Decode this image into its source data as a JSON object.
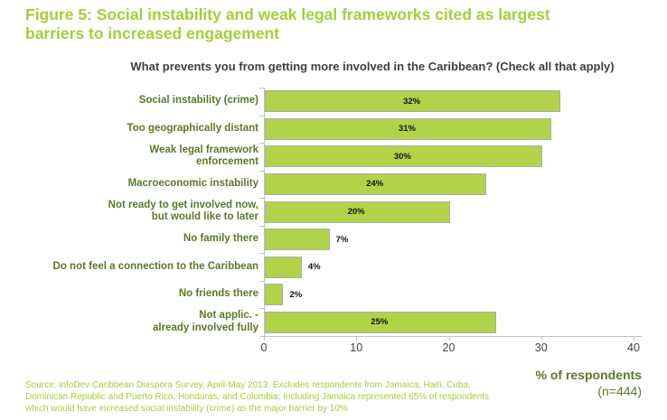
{
  "figure": {
    "title": "Figure 5: Social instability and weak legal frameworks cited as largest\nbarriers to increased engagement",
    "question": "What prevents you from getting more involved in the Caribbean? (Check all that apply)",
    "x_axis_title": "% of respondents",
    "sample_size": "(n=444)",
    "source": "Source: infoDev Caribbean Diaspora Survey, April-May 2013. Excludes respondents from Jamaica, Haiti, Cuba,\nDominican Republic and Puerto Rico, Honduras, and Colombia; Including Jamaica represented 65% of respondents\nwhich would have increased social instability (crime) as the major barrier by 10%"
  },
  "chart_data": {
    "type": "bar",
    "orientation": "horizontal",
    "title": "What prevents you from getting more involved in the Caribbean? (Check all that apply)",
    "categories": [
      "Social instability (crime)",
      "Too geographically distant",
      "Weak legal framework\nenforcement",
      "Macroeconomic instability",
      "Not ready to get involved now,\nbut would like to later",
      "No family there",
      "Do not feel a connection to the Caribbean",
      "No friends there",
      "Not applic. -\nalready involved fully"
    ],
    "values": [
      32,
      31,
      30,
      24,
      20,
      7,
      4,
      2,
      25
    ],
    "data_labels": [
      "32%",
      "31%",
      "30%",
      "24%",
      "20%",
      "7%",
      "4%",
      "2%",
      "25%"
    ],
    "xlabel": "% of respondents",
    "ylabel": "",
    "xlim": [
      0,
      40
    ],
    "xticks": [
      0,
      10,
      20,
      30,
      40
    ],
    "grid": false,
    "legend": false
  },
  "colors": {
    "title_green": "#A5CE39",
    "bar_fill": "#B2D349",
    "bar_border": "#ABABAB",
    "category_text": "#5C7829",
    "question_text": "#3F3F3F",
    "axis_line": "#C3C3C3",
    "tick_text": "#404040",
    "value_text": "#111111"
  }
}
